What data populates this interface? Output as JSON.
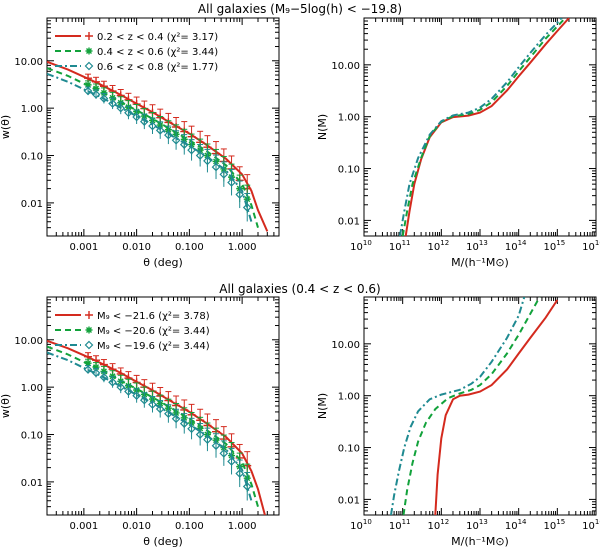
{
  "colors": {
    "red": "#d42a1e",
    "green": "#12a23b",
    "teal": "#1f8a91",
    "axis": "#000000"
  },
  "titles": {
    "top": "All galaxies (M₉−5log(h) < −19.8)",
    "bottom": "All galaxies (0.4 < z < 0.6)"
  },
  "axis_labels": {
    "w_y": "w(θ)",
    "w_x": "θ (deg)",
    "n_y": "N(M)",
    "n_x": "M/(h⁻¹M⊙)"
  },
  "chart_data": [
    {
      "type": "line",
      "panel": "top-left",
      "xlabel": "θ (deg)",
      "ylabel": "w(θ)",
      "xscale": "log",
      "yscale": "log",
      "xlim": [
        0.0002,
        5
      ],
      "ylim": [
        0.002,
        80
      ],
      "xticks": [
        0.001,
        0.01,
        0.1,
        1
      ],
      "xticklabels": [
        "0.001",
        "0.010",
        "0.100",
        "1.000"
      ],
      "yticks": [
        0.01,
        0.1,
        1,
        10
      ],
      "yticklabels": [
        "0.01",
        "0.10",
        "1.00",
        "10.00"
      ],
      "legend": "top-right",
      "series": [
        {
          "name": "0.2 < z < 0.4",
          "chi2": "3.17",
          "color": "red",
          "style": "solid",
          "marker": "+",
          "curve_x": [
            0.0002,
            0.0005,
            0.001,
            0.002,
            0.005,
            0.01,
            0.02,
            0.05,
            0.1,
            0.2,
            0.5,
            1,
            1.5,
            2,
            3
          ],
          "curve_y": [
            9.5,
            6.5,
            4.6,
            3.2,
            1.9,
            1.25,
            0.82,
            0.45,
            0.29,
            0.175,
            0.085,
            0.04,
            0.018,
            0.007,
            0.0025
          ],
          "points_x": [
            0.0012,
            0.0017,
            0.0024,
            0.0035,
            0.005,
            0.007,
            0.01,
            0.014,
            0.02,
            0.028,
            0.04,
            0.056,
            0.08,
            0.11,
            0.16,
            0.22,
            0.32,
            0.45,
            0.63,
            0.9,
            1.25
          ],
          "points_y": [
            4.3,
            3.6,
            2.9,
            2.3,
            1.85,
            1.5,
            1.22,
            0.98,
            0.8,
            0.63,
            0.5,
            0.4,
            0.32,
            0.25,
            0.19,
            0.15,
            0.11,
            0.075,
            0.052,
            0.03,
            0.02
          ]
        },
        {
          "name": "0.4 < z < 0.6",
          "chi2": "3.44",
          "color": "green",
          "style": "dashed",
          "marker": "*",
          "curve_x": [
            0.0002,
            0.0005,
            0.001,
            0.002,
            0.005,
            0.01,
            0.02,
            0.05,
            0.1,
            0.2,
            0.5,
            1,
            1.5,
            2
          ],
          "curve_y": [
            7.0,
            4.8,
            3.3,
            2.3,
            1.35,
            0.9,
            0.6,
            0.33,
            0.21,
            0.13,
            0.062,
            0.025,
            0.009,
            0.003
          ],
          "points_x": [
            0.0012,
            0.0017,
            0.0024,
            0.0035,
            0.005,
            0.007,
            0.01,
            0.014,
            0.02,
            0.028,
            0.04,
            0.056,
            0.08,
            0.11,
            0.16,
            0.22,
            0.32,
            0.45,
            0.63,
            0.9,
            1.25
          ],
          "points_y": [
            3.1,
            2.6,
            2.1,
            1.65,
            1.3,
            1.05,
            0.85,
            0.68,
            0.55,
            0.44,
            0.35,
            0.28,
            0.22,
            0.17,
            0.13,
            0.1,
            0.075,
            0.052,
            0.035,
            0.02,
            0.012
          ]
        },
        {
          "name": "0.6 < z < 0.8",
          "chi2": "1.77",
          "color": "teal",
          "style": "dashdot",
          "marker": "diamond",
          "curve_x": [
            0.0002,
            0.0005,
            0.001,
            0.002,
            0.005,
            0.01,
            0.02,
            0.05,
            0.1,
            0.2,
            0.5,
            1,
            1.5
          ],
          "curve_y": [
            5.3,
            3.6,
            2.5,
            1.75,
            1.02,
            0.68,
            0.45,
            0.25,
            0.16,
            0.1,
            0.048,
            0.018,
            0.004
          ],
          "points_x": [
            0.0012,
            0.0017,
            0.0024,
            0.0035,
            0.005,
            0.007,
            0.01,
            0.014,
            0.02,
            0.028,
            0.04,
            0.056,
            0.08,
            0.11,
            0.16,
            0.22,
            0.32,
            0.45,
            0.63,
            0.9,
            1.25
          ],
          "points_y": [
            2.3,
            1.95,
            1.6,
            1.25,
            1.0,
            0.8,
            0.65,
            0.52,
            0.42,
            0.34,
            0.27,
            0.21,
            0.17,
            0.13,
            0.1,
            0.077,
            0.057,
            0.04,
            0.027,
            0.015,
            0.008
          ]
        }
      ]
    },
    {
      "type": "line",
      "panel": "top-right",
      "xlabel": "M/(h⁻¹M⊙)",
      "ylabel": "N(M)",
      "xscale": "log",
      "yscale": "log",
      "xlim": [
        10000000000.0,
        1e+16
      ],
      "ylim": [
        0.005,
        80
      ],
      "xticks": [
        10000000000.0,
        100000000000.0,
        1000000000000.0,
        10000000000000.0,
        100000000000000.0,
        1000000000000000.0,
        1e+16
      ],
      "xticklabels": [
        "10",
        "10",
        "10",
        "10",
        "10",
        "10",
        "10"
      ],
      "xtickexponents": [
        "10",
        "11",
        "12",
        "13",
        "14",
        "15",
        "16"
      ],
      "yticks": [
        0.01,
        0.1,
        1,
        10
      ],
      "yticklabels": [
        "0.01",
        "0.10",
        "1.00",
        "10.00"
      ],
      "series": [
        {
          "color": "red",
          "style": "solid",
          "x": [
            120000000000.0,
            150000000000.0,
            200000000000.0,
            300000000000.0,
            500000000000.0,
            1000000000000.0,
            2000000000000.0,
            5000000000000.0,
            10000000000000.0,
            20000000000000.0,
            50000000000000.0,
            100000000000000.0,
            200000000000000.0,
            500000000000000.0,
            1000000000000000.0,
            2000000000000000.0
          ],
          "y": [
            0.005,
            0.015,
            0.05,
            0.15,
            0.4,
            0.78,
            0.98,
            1.05,
            1.2,
            1.6,
            3.2,
            6.0,
            11,
            25,
            45,
            80
          ]
        },
        {
          "color": "green",
          "style": "dashed",
          "x": [
            100000000000.0,
            130000000000.0,
            180000000000.0,
            300000000000.0,
            500000000000.0,
            1000000000000.0,
            2000000000000.0,
            5000000000000.0,
            10000000000000.0,
            20000000000000.0,
            50000000000000.0,
            100000000000000.0,
            200000000000000.0,
            500000000000000.0,
            1000000000000000.0,
            1600000000000000.0
          ],
          "y": [
            0.005,
            0.015,
            0.05,
            0.16,
            0.42,
            0.8,
            1.02,
            1.12,
            1.35,
            1.9,
            3.9,
            7.5,
            14,
            32,
            55,
            80
          ]
        },
        {
          "color": "teal",
          "style": "dashdot",
          "x": [
            85000000000.0,
            110000000000.0,
            150000000000.0,
            250000000000.0,
            500000000000.0,
            1000000000000.0,
            2000000000000.0,
            5000000000000.0,
            10000000000000.0,
            20000000000000.0,
            50000000000000.0,
            100000000000000.0,
            200000000000000.0,
            500000000000000.0,
            1000000000000000.0,
            1300000000000000.0
          ],
          "y": [
            0.005,
            0.015,
            0.05,
            0.16,
            0.45,
            0.82,
            1.06,
            1.2,
            1.5,
            2.2,
            4.6,
            9,
            17,
            38,
            65,
            80
          ]
        }
      ]
    },
    {
      "type": "line",
      "panel": "bottom-left",
      "xlabel": "θ (deg)",
      "ylabel": "w(θ)",
      "xscale": "log",
      "yscale": "log",
      "xlim": [
        0.0002,
        5
      ],
      "ylim": [
        0.002,
        80
      ],
      "xticks": [
        0.001,
        0.01,
        0.1,
        1
      ],
      "xticklabels": [
        "0.001",
        "0.010",
        "0.100",
        "1.000"
      ],
      "yticks": [
        0.01,
        0.1,
        1,
        10
      ],
      "yticklabels": [
        "0.01",
        "0.10",
        "1.00",
        "10.00"
      ],
      "legend": "top-right",
      "series": [
        {
          "name": "M₉ < −21.6",
          "chi2": "3.78",
          "color": "red",
          "style": "solid",
          "marker": "+",
          "curve_x": [
            0.0002,
            0.0005,
            0.001,
            0.002,
            0.005,
            0.01,
            0.02,
            0.05,
            0.1,
            0.2,
            0.5,
            1,
            1.5,
            2,
            2.7
          ],
          "curve_y": [
            9.5,
            6.6,
            4.7,
            3.3,
            2.0,
            1.3,
            0.86,
            0.47,
            0.3,
            0.18,
            0.088,
            0.04,
            0.017,
            0.007,
            0.002
          ],
          "points_x": [
            0.0012,
            0.0017,
            0.0024,
            0.0035,
            0.005,
            0.007,
            0.01,
            0.014,
            0.02,
            0.028,
            0.04,
            0.056,
            0.08,
            0.11,
            0.16,
            0.22,
            0.32,
            0.45,
            0.63,
            0.9,
            1.25
          ],
          "points_y": [
            4.4,
            3.7,
            3.0,
            2.4,
            1.9,
            1.55,
            1.26,
            1.0,
            0.82,
            0.65,
            0.52,
            0.41,
            0.33,
            0.26,
            0.2,
            0.155,
            0.115,
            0.08,
            0.055,
            0.032,
            0.022
          ]
        },
        {
          "name": "M₉ < −20.6",
          "chi2": "3.44",
          "color": "green",
          "style": "dashed",
          "marker": "*",
          "curve_x": [
            0.0002,
            0.0005,
            0.001,
            0.002,
            0.005,
            0.01,
            0.02,
            0.05,
            0.1,
            0.2,
            0.5,
            1,
            1.5,
            2
          ],
          "curve_y": [
            7.2,
            4.9,
            3.4,
            2.35,
            1.38,
            0.92,
            0.61,
            0.34,
            0.215,
            0.13,
            0.063,
            0.026,
            0.009,
            0.003
          ],
          "points_x": [
            0.0012,
            0.0017,
            0.0024,
            0.0035,
            0.005,
            0.007,
            0.01,
            0.014,
            0.02,
            0.028,
            0.04,
            0.056,
            0.08,
            0.11,
            0.16,
            0.22,
            0.32,
            0.45,
            0.63,
            0.9,
            1.25
          ],
          "points_y": [
            3.2,
            2.65,
            2.15,
            1.7,
            1.33,
            1.07,
            0.87,
            0.7,
            0.56,
            0.45,
            0.36,
            0.285,
            0.225,
            0.175,
            0.135,
            0.1,
            0.076,
            0.053,
            0.036,
            0.021,
            0.012
          ]
        },
        {
          "name": "M₉ < −19.6",
          "chi2": "3.44",
          "color": "teal",
          "style": "dashdot",
          "marker": "diamond",
          "curve_x": [
            0.0002,
            0.0005,
            0.001,
            0.002,
            0.005,
            0.01,
            0.02,
            0.05,
            0.1,
            0.2,
            0.5,
            1,
            1.5
          ],
          "curve_y": [
            5.4,
            3.7,
            2.55,
            1.78,
            1.04,
            0.69,
            0.46,
            0.255,
            0.163,
            0.1,
            0.048,
            0.018,
            0.004
          ],
          "points_x": [
            0.0012,
            0.0017,
            0.0024,
            0.0035,
            0.005,
            0.007,
            0.01,
            0.014,
            0.02,
            0.028,
            0.04,
            0.056,
            0.08,
            0.11,
            0.16,
            0.22,
            0.32,
            0.45,
            0.63,
            0.9,
            1.25
          ],
          "points_y": [
            2.35,
            2.0,
            1.62,
            1.27,
            1.0,
            0.81,
            0.66,
            0.53,
            0.43,
            0.345,
            0.275,
            0.215,
            0.17,
            0.132,
            0.1,
            0.078,
            0.058,
            0.04,
            0.027,
            0.015,
            0.008
          ]
        }
      ]
    },
    {
      "type": "line",
      "panel": "bottom-right",
      "xlabel": "M/(h⁻¹M⊙)",
      "ylabel": "N(M)",
      "xscale": "log",
      "yscale": "log",
      "xlim": [
        10000000000.0,
        1e+16
      ],
      "ylim": [
        0.005,
        80
      ],
      "xticks": [
        10000000000.0,
        100000000000.0,
        1000000000000.0,
        10000000000000.0,
        100000000000000.0,
        1000000000000000.0,
        1e+16
      ],
      "xticklabels": [
        "10",
        "10",
        "10",
        "10",
        "10",
        "10",
        "10"
      ],
      "xtickexponents": [
        "10",
        "11",
        "12",
        "13",
        "14",
        "15",
        "16"
      ],
      "yticks": [
        0.01,
        0.1,
        1,
        10
      ],
      "yticklabels": [
        "0.01",
        "0.10",
        "1.00",
        "10.00"
      ],
      "series": [
        {
          "color": "red",
          "style": "solid",
          "x": [
            700000000000.0,
            800000000000.0,
            1000000000000.0,
            1300000000000.0,
            2000000000000.0,
            3000000000000.0,
            5000000000000.0,
            10000000000000.0,
            20000000000000.0,
            50000000000000.0,
            100000000000000.0,
            200000000000000.0,
            500000000000000.0,
            1000000000000000.0
          ],
          "y": [
            0.005,
            0.03,
            0.15,
            0.42,
            0.85,
            1.0,
            1.05,
            1.2,
            1.6,
            3.2,
            6.5,
            13,
            32,
            70
          ]
        },
        {
          "color": "green",
          "style": "dashed",
          "x": [
            105000000000.0,
            130000000000.0,
            180000000000.0,
            250000000000.0,
            400000000000.0,
            700000000000.0,
            1500000000000.0,
            3000000000000.0,
            6000000000000.0,
            10000000000000.0,
            20000000000000.0,
            50000000000000.0,
            100000000000000.0,
            200000000000000.0,
            350000000000000.0
          ],
          "y": [
            0.005,
            0.015,
            0.05,
            0.13,
            0.3,
            0.55,
            0.9,
            1.1,
            1.3,
            1.6,
            2.6,
            6.5,
            15,
            38,
            80
          ]
        },
        {
          "color": "teal",
          "style": "dashdot",
          "x": [
            50000000000.0,
            60000000000.0,
            80000000000.0,
            110000000000.0,
            160000000000.0,
            250000000000.0,
            500000000000.0,
            1000000000000.0,
            3000000000000.0,
            6000000000000.0,
            10000000000000.0,
            20000000000000.0,
            50000000000000.0,
            100000000000000.0,
            140000000000000.0
          ],
          "y": [
            0.005,
            0.012,
            0.035,
            0.1,
            0.25,
            0.5,
            0.85,
            1.05,
            1.3,
            1.7,
            2.3,
            4.5,
            13,
            35,
            80
          ]
        }
      ]
    }
  ]
}
